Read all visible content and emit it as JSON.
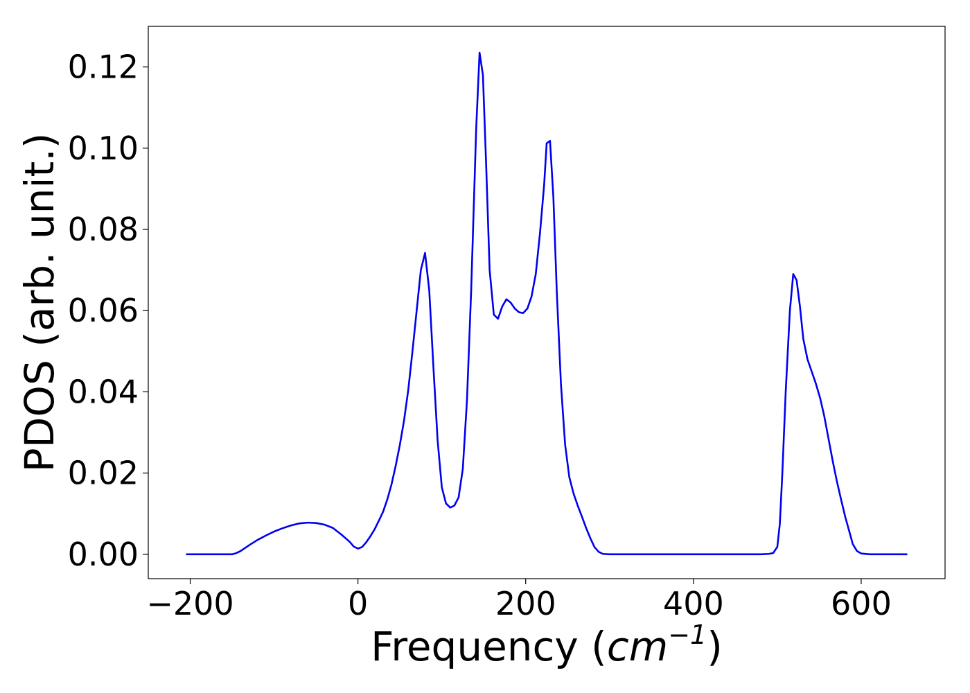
{
  "chart_data": {
    "type": "line",
    "xlabel_main": "Frequency (",
    "xlabel_math_base": "cm",
    "xlabel_math_exp": "−1",
    "xlabel_close": ")",
    "ylabel": "PDOS (arb. unit.)",
    "xlim": [
      -250,
      700
    ],
    "ylim": [
      -0.006,
      0.13
    ],
    "xticks": [
      -200,
      0,
      200,
      400,
      600
    ],
    "xtick_labels": [
      "−200",
      "0",
      "200",
      "400",
      "600"
    ],
    "yticks": [
      0.0,
      0.02,
      0.04,
      0.06,
      0.08,
      0.1,
      0.12
    ],
    "ytick_labels": [
      "0.00",
      "0.02",
      "0.04",
      "0.06",
      "0.08",
      "0.10",
      "0.12"
    ],
    "grid": false,
    "series": [
      {
        "color": "#0000ee",
        "points": [
          [
            -205,
            0.0
          ],
          [
            -150,
            0.0
          ],
          [
            -145,
            0.0003
          ],
          [
            -140,
            0.0008
          ],
          [
            -130,
            0.0022
          ],
          [
            -120,
            0.0035
          ],
          [
            -110,
            0.0046
          ],
          [
            -100,
            0.0056
          ],
          [
            -90,
            0.0064
          ],
          [
            -80,
            0.0071
          ],
          [
            -70,
            0.0076
          ],
          [
            -60,
            0.0078
          ],
          [
            -50,
            0.0077
          ],
          [
            -40,
            0.0073
          ],
          [
            -30,
            0.0065
          ],
          [
            -20,
            0.0049
          ],
          [
            -10,
            0.0031
          ],
          [
            -5,
            0.0019
          ],
          [
            0,
            0.0014
          ],
          [
            5,
            0.0018
          ],
          [
            10,
            0.003
          ],
          [
            15,
            0.0045
          ],
          [
            20,
            0.0062
          ],
          [
            25,
            0.0083
          ],
          [
            30,
            0.0105
          ],
          [
            35,
            0.0135
          ],
          [
            40,
            0.0172
          ],
          [
            45,
            0.0218
          ],
          [
            50,
            0.027
          ],
          [
            55,
            0.033
          ],
          [
            60,
            0.0405
          ],
          [
            65,
            0.05
          ],
          [
            70,
            0.06
          ],
          [
            75,
            0.07
          ],
          [
            80,
            0.0742
          ],
          [
            85,
            0.065
          ],
          [
            90,
            0.046
          ],
          [
            95,
            0.028
          ],
          [
            100,
            0.0165
          ],
          [
            105,
            0.0125
          ],
          [
            110,
            0.0115
          ],
          [
            115,
            0.012
          ],
          [
            120,
            0.014
          ],
          [
            125,
            0.021
          ],
          [
            130,
            0.038
          ],
          [
            135,
            0.065
          ],
          [
            138,
            0.085
          ],
          [
            141,
            0.105
          ],
          [
            145,
            0.1235
          ],
          [
            149,
            0.118
          ],
          [
            153,
            0.095
          ],
          [
            157,
            0.07
          ],
          [
            162,
            0.059
          ],
          [
            167,
            0.058
          ],
          [
            172,
            0.061
          ],
          [
            177,
            0.0628
          ],
          [
            182,
            0.062
          ],
          [
            187,
            0.0605
          ],
          [
            192,
            0.0596
          ],
          [
            197,
            0.0594
          ],
          [
            202,
            0.0605
          ],
          [
            207,
            0.0635
          ],
          [
            212,
            0.069
          ],
          [
            217,
            0.079
          ],
          [
            222,
            0.091
          ],
          [
            225,
            0.1012
          ],
          [
            229,
            0.1018
          ],
          [
            233,
            0.088
          ],
          [
            237,
            0.065
          ],
          [
            242,
            0.042
          ],
          [
            247,
            0.027
          ],
          [
            252,
            0.019
          ],
          [
            257,
            0.015
          ],
          [
            262,
            0.012
          ],
          [
            267,
            0.0093
          ],
          [
            272,
            0.0065
          ],
          [
            277,
            0.004
          ],
          [
            282,
            0.0018
          ],
          [
            287,
            0.0006
          ],
          [
            292,
            0.0001
          ],
          [
            300,
            0.0
          ],
          [
            480,
            0.0
          ],
          [
            490,
            0.0001
          ],
          [
            495,
            0.0003
          ],
          [
            500,
            0.0018
          ],
          [
            503,
            0.0075
          ],
          [
            506,
            0.02
          ],
          [
            510,
            0.04
          ],
          [
            515,
            0.06
          ],
          [
            519,
            0.069
          ],
          [
            523,
            0.0675
          ],
          [
            527,
            0.061
          ],
          [
            531,
            0.053
          ],
          [
            536,
            0.048
          ],
          [
            541,
            0.045
          ],
          [
            546,
            0.042
          ],
          [
            551,
            0.0385
          ],
          [
            556,
            0.034
          ],
          [
            561,
            0.0285
          ],
          [
            566,
            0.023
          ],
          [
            571,
            0.018
          ],
          [
            576,
            0.0135
          ],
          [
            581,
            0.0092
          ],
          [
            586,
            0.0055
          ],
          [
            590,
            0.0025
          ],
          [
            595,
            0.0008
          ],
          [
            600,
            0.0002
          ],
          [
            610,
            0.0
          ],
          [
            655,
            0.0
          ]
        ]
      }
    ]
  }
}
